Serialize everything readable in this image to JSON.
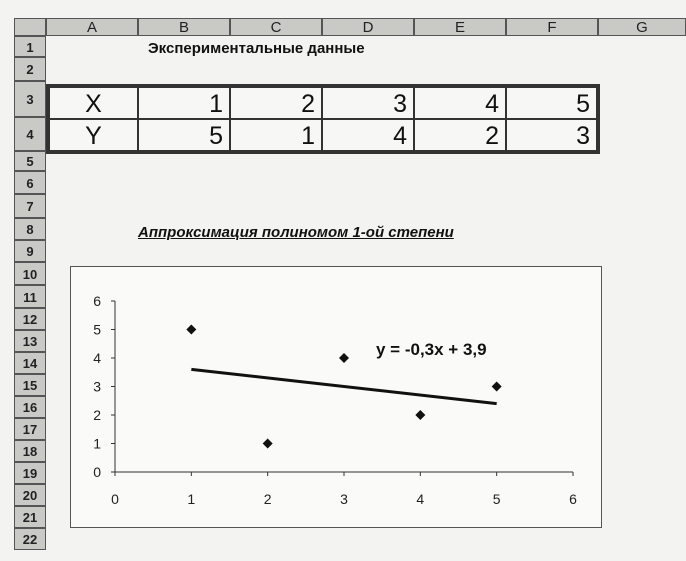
{
  "sheet": {
    "columns": [
      "A",
      "B",
      "C",
      "D",
      "E",
      "F",
      "G"
    ],
    "rows": [
      "1",
      "2",
      "3",
      "4",
      "5",
      "6",
      "7",
      "8",
      "9",
      "10",
      "11",
      "12",
      "13",
      "14",
      "15",
      "16",
      "17",
      "18",
      "19",
      "20",
      "21",
      "22"
    ],
    "title": "Экспериментальные данные",
    "table": [
      {
        "label": "X",
        "values": [
          "1",
          "2",
          "3",
          "4",
          "5"
        ]
      },
      {
        "label": "Y",
        "values": [
          "5",
          "1",
          "4",
          "2",
          "3"
        ]
      }
    ]
  },
  "chart_data": {
    "type": "scatter",
    "title": "Аппроксимация полиномом 1-ой степени",
    "x": [
      1,
      2,
      3,
      4,
      5
    ],
    "y": [
      5,
      1,
      4,
      2,
      3
    ],
    "trendline": {
      "slope": -0.3,
      "intercept": 3.9,
      "x_range": [
        1,
        5
      ],
      "label": "y = -0,3x + 3,9"
    },
    "xlim": [
      0,
      6
    ],
    "ylim": [
      0,
      6
    ],
    "xticks": [
      "0",
      "1",
      "2",
      "3",
      "4",
      "5",
      "6"
    ],
    "yticks": [
      "0",
      "1",
      "2",
      "3",
      "4",
      "5",
      "6"
    ],
    "grid": false,
    "marker": "diamond",
    "line_color": "#111111",
    "marker_color": "#111111"
  }
}
